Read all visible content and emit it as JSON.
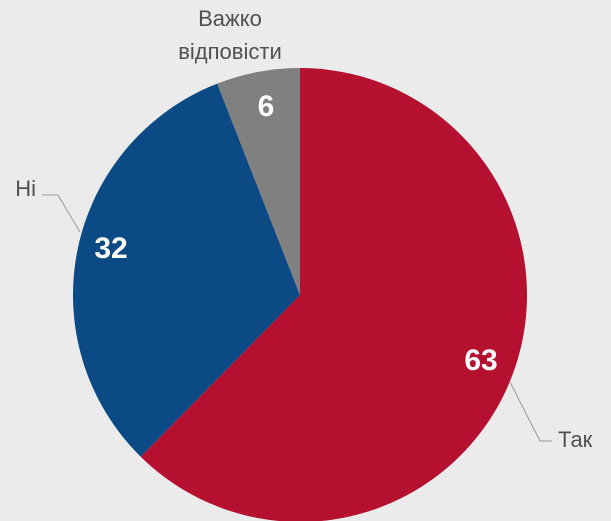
{
  "chart_data": {
    "type": "pie",
    "categories": [
      "Так",
      "Ні",
      "Важко відповісти"
    ],
    "values": [
      63,
      32,
      6
    ],
    "colors": [
      "#b5102f",
      "#0b4a85",
      "#808080"
    ]
  }
}
